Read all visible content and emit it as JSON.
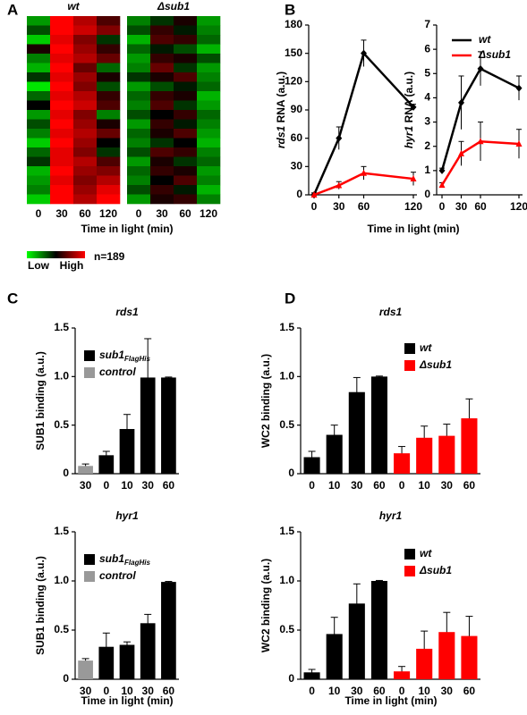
{
  "chart_data": [
    {
      "type": "heatmap",
      "panel": "A",
      "xlabel": "Time in light (min)",
      "zlim": [
        -1,
        1
      ],
      "colorbar_labels": [
        "Low",
        "High"
      ],
      "note": "n=189",
      "panels": [
        {
          "title": "wt",
          "categories": [
            "0",
            "30",
            "60",
            "120"
          ],
          "values": [
            [
              -0.6,
              1,
              0.7,
              0.3
            ],
            [
              -0.3,
              1,
              0.8,
              0.5
            ],
            [
              -0.8,
              0.9,
              0.5,
              -0.2
            ],
            [
              0.1,
              1,
              0.6,
              0.2
            ],
            [
              -0.5,
              0.9,
              0.7,
              0.4
            ],
            [
              -0.7,
              1,
              0.4,
              -0.4
            ],
            [
              -0.2,
              0.9,
              0.6,
              0.1
            ],
            [
              -0.9,
              1,
              0.5,
              -0.3
            ],
            [
              -0.4,
              0.9,
              0.7,
              0.2
            ],
            [
              0,
              1,
              0.8,
              0.3
            ],
            [
              -0.6,
              0.9,
              0.5,
              -0.5
            ],
            [
              -0.3,
              1,
              0.6,
              0.1
            ],
            [
              -0.5,
              0.9,
              0.7,
              0.4
            ],
            [
              -0.8,
              1,
              0.6,
              0
            ],
            [
              -0.4,
              0.9,
              0.5,
              -0.2
            ],
            [
              -0.2,
              0.9,
              0.7,
              0.3
            ],
            [
              -0.7,
              1,
              0.6,
              0.5
            ],
            [
              -0.6,
              0.9,
              0.5,
              0.7
            ],
            [
              -0.5,
              1,
              0.6,
              0.9
            ],
            [
              -0.8,
              1,
              0.7,
              1
            ]
          ]
        },
        {
          "title": "Δsub1",
          "categories": [
            "0",
            "30",
            "60",
            "120"
          ],
          "values": [
            [
              -0.5,
              -0.2,
              0.1,
              -0.6
            ],
            [
              -0.3,
              0.2,
              -0.1,
              -0.5
            ],
            [
              -0.7,
              0.3,
              0.2,
              -0.4
            ],
            [
              -0.4,
              -0.1,
              -0.3,
              -0.7
            ],
            [
              -0.6,
              0.2,
              0.1,
              -0.3
            ],
            [
              -0.5,
              0.4,
              -0.2,
              -0.6
            ],
            [
              -0.2,
              0.1,
              0.3,
              -0.5
            ],
            [
              -0.6,
              -0.3,
              -0.1,
              -0.4
            ],
            [
              -0.4,
              0.2,
              0.1,
              -0.7
            ],
            [
              -0.5,
              0.3,
              -0.2,
              -0.6
            ],
            [
              -0.3,
              0,
              0.2,
              -0.4
            ],
            [
              -0.6,
              0.2,
              -0.1,
              -0.5
            ],
            [
              -0.4,
              0.1,
              0.3,
              -0.6
            ],
            [
              -0.5,
              -0.2,
              0,
              -0.7
            ],
            [
              -0.3,
              0.3,
              0.2,
              -0.5
            ],
            [
              -0.6,
              0.1,
              -0.2,
              -0.4
            ],
            [
              -0.4,
              0.2,
              0.1,
              -0.6
            ],
            [
              -0.5,
              0,
              0.3,
              -0.5
            ],
            [
              -0.3,
              0.2,
              -0.1,
              -0.7
            ],
            [
              -0.6,
              0.1,
              0.2,
              -0.5
            ]
          ]
        }
      ]
    },
    {
      "type": "line",
      "panel": "B",
      "ylabel_gene": "rds1",
      "ylabel": "RNA (a.u.)",
      "x": [
        0,
        30,
        60,
        120
      ],
      "xlim": [
        0,
        120
      ],
      "xticks": [
        0,
        30,
        60,
        120
      ],
      "ylim": [
        0,
        180
      ],
      "yticks": [
        0,
        30,
        60,
        90,
        120,
        150,
        180
      ],
      "series": [
        {
          "color": "#000000",
          "marker": "diamond",
          "values": [
            0,
            60,
            150,
            93
          ],
          "errors": [
            2,
            12,
            14,
            3
          ]
        },
        {
          "color": "#ff0000",
          "marker": "triangle",
          "values": [
            0,
            10,
            23,
            17
          ],
          "errors": [
            2,
            4,
            7,
            7
          ]
        }
      ]
    },
    {
      "type": "line",
      "ylabel_gene": "hyr1",
      "ylabel": "RNA (a.u.)",
      "xlabel": "Time in light (min)",
      "x": [
        0,
        30,
        60,
        120
      ],
      "xlim": [
        0,
        120
      ],
      "xticks": [
        0,
        30,
        60,
        120
      ],
      "ylim": [
        0,
        7
      ],
      "yticks": [
        0,
        1,
        2,
        3,
        4,
        5,
        6,
        7
      ],
      "series": [
        {
          "name": "wt",
          "color": "#000000",
          "marker": "diamond",
          "values": [
            1,
            3.8,
            5.2,
            4.4
          ],
          "errors": [
            0.1,
            1.1,
            0.7,
            0.5
          ]
        },
        {
          "name": "Δsub1",
          "color": "#ff0000",
          "marker": "triangle",
          "values": [
            0.4,
            1.7,
            2.2,
            2.1
          ],
          "errors": [
            0.1,
            0.5,
            0.8,
            0.6
          ]
        }
      ]
    },
    {
      "type": "bar",
      "panel": "C",
      "title": "rds1",
      "ylabel": "SUB1 binding (a.u.)",
      "categories": [
        "30",
        "0",
        "10",
        "30",
        "60"
      ],
      "ylim": [
        0,
        1.5
      ],
      "yticks": [
        0,
        0.5,
        {
          "value": 1,
          "label": "1.0"
        },
        1.5
      ],
      "series": [
        {
          "name": "sub1",
          "name_subscript": "FlagHis",
          "color": "#000000",
          "values": [
            null,
            0.19,
            0.46,
            0.99,
            0.99
          ],
          "errors": [
            null,
            0.04,
            0.15,
            0.4,
            0.005
          ]
        },
        {
          "name": "control",
          "color": "#999999",
          "values": [
            0.08,
            null,
            null,
            null,
            null
          ],
          "errors": [
            0.02,
            null,
            null,
            null,
            null
          ]
        }
      ]
    },
    {
      "type": "bar",
      "title": "hyr1",
      "ylabel": "SUB1 binding (a.u.)",
      "xlabel": "Time in light (min)",
      "categories": [
        "30",
        "0",
        "10",
        "30",
        "60"
      ],
      "ylim": [
        0,
        1.5
      ],
      "yticks": [
        0,
        0.5,
        {
          "value": 1,
          "label": "1.0"
        },
        1.5
      ],
      "series": [
        {
          "name": "sub1",
          "name_subscript": "FlagHis",
          "color": "#000000",
          "values": [
            null,
            0.33,
            0.35,
            0.57,
            0.99
          ],
          "errors": [
            null,
            0.14,
            0.03,
            0.09,
            0.005
          ]
        },
        {
          "name": "control",
          "color": "#999999",
          "values": [
            0.19,
            null,
            null,
            null,
            null
          ],
          "errors": [
            0.02,
            null,
            null,
            null,
            null
          ]
        }
      ]
    },
    {
      "type": "bar",
      "panel": "D",
      "title": "rds1",
      "ylabel": "WC2 binding (a.u.)",
      "categories": [
        "0",
        "10",
        "30",
        "60",
        "0",
        "10",
        "30",
        "60"
      ],
      "ylim": [
        0,
        1.5
      ],
      "yticks": [
        0,
        0.5,
        {
          "value": 1,
          "label": "1.0"
        },
        1.5
      ],
      "series": [
        {
          "name": "wt",
          "color": "#000000",
          "values": [
            0.17,
            0.4,
            0.84,
            1,
            null,
            null,
            null,
            null
          ],
          "errors": [
            0.06,
            0.1,
            0.15,
            0.005,
            null,
            null,
            null,
            null
          ]
        },
        {
          "name": "Δsub1",
          "color": "#ff0000",
          "values": [
            null,
            null,
            null,
            null,
            0.21,
            0.37,
            0.39,
            0.57
          ],
          "errors": [
            null,
            null,
            null,
            null,
            0.07,
            0.12,
            0.12,
            0.2
          ]
        }
      ]
    },
    {
      "type": "bar",
      "title": "hyr1",
      "ylabel": "WC2 binding (a.u.)",
      "xlabel": "Time in light (min)",
      "categories": [
        "0",
        "10",
        "30",
        "60",
        "0",
        "10",
        "30",
        "60"
      ],
      "ylim": [
        0,
        1.5
      ],
      "yticks": [
        0,
        0.5,
        {
          "value": 1,
          "label": "1.0"
        },
        1.5
      ],
      "series": [
        {
          "name": "wt",
          "color": "#000000",
          "values": [
            0.07,
            0.46,
            0.77,
            1,
            null,
            null,
            null,
            null
          ],
          "errors": [
            0.03,
            0.17,
            0.2,
            0.005,
            null,
            null,
            null,
            null
          ]
        },
        {
          "name": "Δsub1",
          "color": "#ff0000",
          "values": [
            null,
            null,
            null,
            null,
            0.08,
            0.31,
            0.48,
            0.44
          ],
          "errors": [
            null,
            null,
            null,
            null,
            0.05,
            0.18,
            0.2,
            0.2
          ]
        }
      ]
    }
  ]
}
